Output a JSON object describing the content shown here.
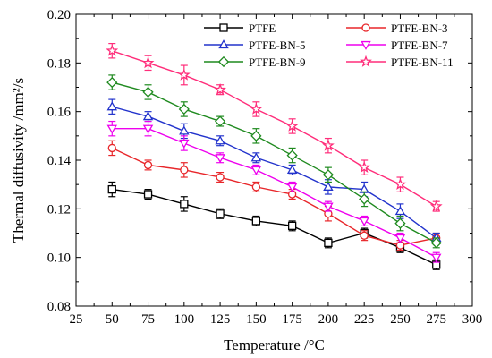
{
  "chart_data": {
    "type": "line",
    "xlabel": "Temperature /°C",
    "ylabel": "Thermal diffusivity /mm²/s",
    "xlim": [
      25,
      300
    ],
    "ylim": [
      0.08,
      0.2
    ],
    "x_ticks": [
      "25",
      "50",
      "75",
      "100",
      "125",
      "150",
      "175",
      "200",
      "225",
      "250",
      "275",
      "300"
    ],
    "y_ticks": [
      "0.08",
      "0.10",
      "0.12",
      "0.14",
      "0.16",
      "0.18",
      "0.20"
    ],
    "x": [
      50,
      75,
      100,
      125,
      150,
      175,
      200,
      225,
      250,
      275
    ],
    "grid": false,
    "legend_position": "top-right",
    "series": [
      {
        "name": "PTFE",
        "color": "#000000",
        "marker": "square",
        "values": [
          0.128,
          0.126,
          0.122,
          0.118,
          0.115,
          0.113,
          0.106,
          0.11,
          0.104,
          0.097
        ],
        "errors": [
          0.003,
          0.002,
          0.003,
          0.002,
          0.002,
          0.002,
          0.002,
          0.002,
          0.002,
          0.002
        ]
      },
      {
        "name": "PTFE-BN-3",
        "color": "#e8262a",
        "marker": "circle",
        "values": [
          0.145,
          0.138,
          0.136,
          0.133,
          0.129,
          0.126,
          0.118,
          0.109,
          0.105,
          0.108
        ],
        "errors": [
          0.003,
          0.002,
          0.003,
          0.002,
          0.002,
          0.002,
          0.003,
          0.002,
          0.002,
          0.002
        ]
      },
      {
        "name": "PTFE-BN-5",
        "color": "#2233cc",
        "marker": "triangle-up",
        "values": [
          0.162,
          0.158,
          0.152,
          0.148,
          0.141,
          0.136,
          0.129,
          0.128,
          0.119,
          0.108
        ],
        "errors": [
          0.003,
          0.002,
          0.003,
          0.002,
          0.002,
          0.002,
          0.003,
          0.003,
          0.003,
          0.002
        ]
      },
      {
        "name": "PTFE-BN-7",
        "color": "#ee00ee",
        "marker": "triangle-down",
        "values": [
          0.153,
          0.153,
          0.147,
          0.141,
          0.136,
          0.129,
          0.121,
          0.115,
          0.108,
          0.1
        ],
        "errors": [
          0.003,
          0.003,
          0.003,
          0.002,
          0.002,
          0.002,
          0.002,
          0.002,
          0.002,
          0.002
        ]
      },
      {
        "name": "PTFE-BN-9",
        "color": "#1f8a1f",
        "marker": "diamond",
        "values": [
          0.172,
          0.168,
          0.161,
          0.156,
          0.15,
          0.142,
          0.134,
          0.124,
          0.114,
          0.106
        ],
        "errors": [
          0.003,
          0.003,
          0.003,
          0.002,
          0.003,
          0.003,
          0.003,
          0.003,
          0.003,
          0.002
        ]
      },
      {
        "name": "PTFE-BN-11",
        "color": "#ff2d7a",
        "marker": "star",
        "values": [
          0.185,
          0.18,
          0.175,
          0.169,
          0.161,
          0.154,
          0.146,
          0.137,
          0.13,
          0.121
        ],
        "errors": [
          0.003,
          0.003,
          0.004,
          0.002,
          0.003,
          0.003,
          0.003,
          0.003,
          0.003,
          0.002
        ]
      }
    ]
  }
}
